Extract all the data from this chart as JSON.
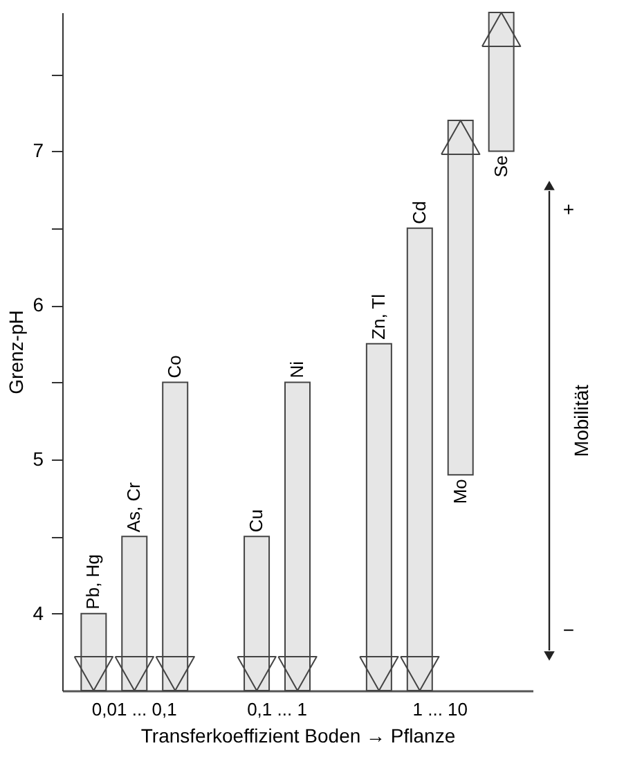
{
  "chart_data": {
    "type": "bar",
    "xlabel": "Transferkoeffizient  Boden → Pflanze",
    "ylabel": "Grenz-pH",
    "categories": [
      "Pb, Hg",
      "As, Cr",
      "Co",
      null,
      "Cu",
      "Ni",
      null,
      "Zn, Tl",
      "Cd",
      "Mo",
      "Se"
    ],
    "base": [
      4.0,
      4.5,
      5.5,
      null,
      4.5,
      5.5,
      null,
      5.75,
      6.5,
      4.9,
      7.0
    ],
    "values": [
      -0.5,
      -1.0,
      -2.0,
      null,
      -1.0,
      -2.0,
      null,
      -2.25,
      -3.0,
      2.3,
      0.9
    ],
    "color": "#e6e6e6",
    "ylim": [
      3.5,
      7.9
    ],
    "yticks": [
      4,
      {
        "value": 4.5,
        "label": null
      },
      5,
      {
        "value": 5.5,
        "label": null
      },
      6,
      {
        "value": 6.5,
        "label": null
      },
      7,
      {
        "value": 7.5,
        "label": null
      }
    ],
    "grid": false,
    "legend": false,
    "tick_labels": "y",
    "annotations": [
      "0,01 ... 0,1",
      "0,1 ... 1",
      "1 ... 10",
      "Mobilität",
      "+",
      "−"
    ]
  }
}
